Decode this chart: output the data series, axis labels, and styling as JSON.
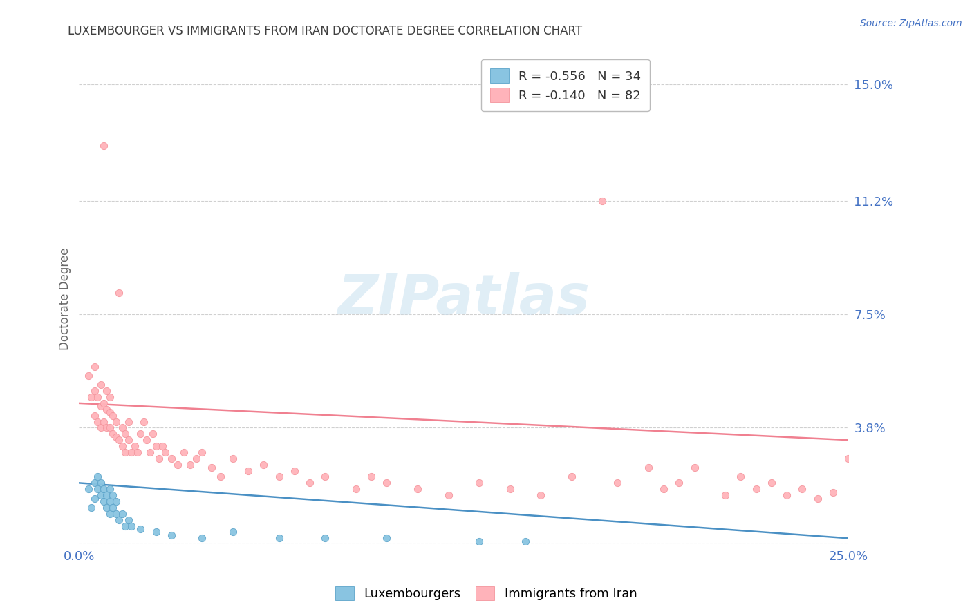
{
  "title": "LUXEMBOURGER VS IMMIGRANTS FROM IRAN DOCTORATE DEGREE CORRELATION CHART",
  "source_text": "Source: ZipAtlas.com",
  "ylabel": "Doctorate Degree",
  "xlim": [
    0.0,
    0.25
  ],
  "ylim": [
    0.0,
    0.16
  ],
  "yticks": [
    0.0,
    0.038,
    0.075,
    0.112,
    0.15
  ],
  "ytick_labels": [
    "",
    "3.8%",
    "7.5%",
    "11.2%",
    "15.0%"
  ],
  "xticks": [
    0.0,
    0.05,
    0.1,
    0.15,
    0.2,
    0.25
  ],
  "xtick_labels": [
    "0.0%",
    "",
    "",
    "",
    "",
    "25.0%"
  ],
  "legend_blue_r": "R = -0.556",
  "legend_blue_n": "N = 34",
  "legend_pink_r": "R = -0.140",
  "legend_pink_n": "N = 82",
  "blue_scatter_color": "#89c4e1",
  "blue_edge_color": "#5ba3c9",
  "pink_scatter_color": "#ffb3ba",
  "pink_edge_color": "#f4949c",
  "blue_line_color": "#4a90c4",
  "pink_line_color": "#f08090",
  "axis_label_color": "#4472c4",
  "grid_color": "#d0d0d0",
  "title_color": "#404040",
  "bg_color": "#ffffff",
  "blue_scatter_x": [
    0.003,
    0.004,
    0.005,
    0.005,
    0.006,
    0.006,
    0.007,
    0.007,
    0.008,
    0.008,
    0.009,
    0.009,
    0.01,
    0.01,
    0.01,
    0.011,
    0.011,
    0.012,
    0.012,
    0.013,
    0.014,
    0.015,
    0.016,
    0.017,
    0.02,
    0.025,
    0.03,
    0.04,
    0.05,
    0.065,
    0.08,
    0.1,
    0.13,
    0.145
  ],
  "blue_scatter_y": [
    0.018,
    0.012,
    0.02,
    0.015,
    0.018,
    0.022,
    0.016,
    0.02,
    0.014,
    0.018,
    0.012,
    0.016,
    0.014,
    0.018,
    0.01,
    0.012,
    0.016,
    0.01,
    0.014,
    0.008,
    0.01,
    0.006,
    0.008,
    0.006,
    0.005,
    0.004,
    0.003,
    0.002,
    0.004,
    0.002,
    0.002,
    0.002,
    0.001,
    0.001
  ],
  "pink_scatter_x": [
    0.003,
    0.004,
    0.005,
    0.005,
    0.005,
    0.006,
    0.006,
    0.007,
    0.007,
    0.007,
    0.008,
    0.008,
    0.008,
    0.009,
    0.009,
    0.009,
    0.01,
    0.01,
    0.01,
    0.011,
    0.011,
    0.012,
    0.012,
    0.013,
    0.013,
    0.014,
    0.014,
    0.015,
    0.015,
    0.016,
    0.016,
    0.017,
    0.018,
    0.019,
    0.02,
    0.021,
    0.022,
    0.023,
    0.024,
    0.025,
    0.026,
    0.027,
    0.028,
    0.03,
    0.032,
    0.034,
    0.036,
    0.038,
    0.04,
    0.043,
    0.046,
    0.05,
    0.055,
    0.06,
    0.065,
    0.07,
    0.075,
    0.08,
    0.09,
    0.095,
    0.1,
    0.11,
    0.12,
    0.13,
    0.14,
    0.15,
    0.16,
    0.17,
    0.175,
    0.185,
    0.19,
    0.195,
    0.2,
    0.21,
    0.215,
    0.22,
    0.225,
    0.23,
    0.235,
    0.24,
    0.245,
    0.25
  ],
  "pink_scatter_y": [
    0.055,
    0.048,
    0.042,
    0.05,
    0.058,
    0.04,
    0.048,
    0.038,
    0.045,
    0.052,
    0.04,
    0.046,
    0.13,
    0.038,
    0.044,
    0.05,
    0.038,
    0.043,
    0.048,
    0.036,
    0.042,
    0.035,
    0.04,
    0.034,
    0.082,
    0.032,
    0.038,
    0.03,
    0.036,
    0.034,
    0.04,
    0.03,
    0.032,
    0.03,
    0.036,
    0.04,
    0.034,
    0.03,
    0.036,
    0.032,
    0.028,
    0.032,
    0.03,
    0.028,
    0.026,
    0.03,
    0.026,
    0.028,
    0.03,
    0.025,
    0.022,
    0.028,
    0.024,
    0.026,
    0.022,
    0.024,
    0.02,
    0.022,
    0.018,
    0.022,
    0.02,
    0.018,
    0.016,
    0.02,
    0.018,
    0.016,
    0.022,
    0.112,
    0.02,
    0.025,
    0.018,
    0.02,
    0.025,
    0.016,
    0.022,
    0.018,
    0.02,
    0.016,
    0.018,
    0.015,
    0.017,
    0.028
  ],
  "blue_trend_x": [
    0.0,
    0.25
  ],
  "blue_trend_y": [
    0.02,
    0.002
  ],
  "pink_trend_x": [
    0.0,
    0.25
  ],
  "pink_trend_y": [
    0.046,
    0.034
  ]
}
